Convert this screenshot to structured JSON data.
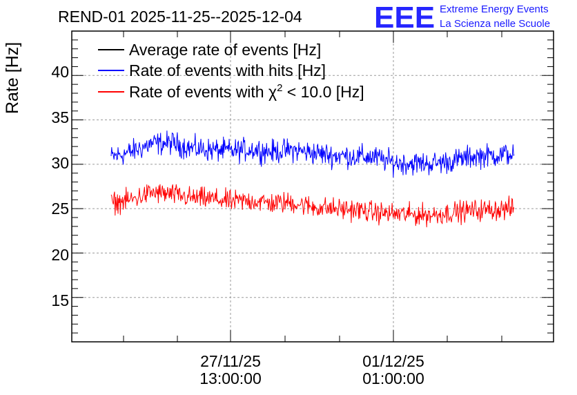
{
  "chart_data": {
    "type": "line",
    "title": "REND-01 2025-11-25--2025-12-04",
    "ylabel": "Rate [Hz]",
    "xlabel": "",
    "ylim": [
      10,
      45
    ],
    "yticks": [
      15,
      20,
      25,
      30,
      35,
      40
    ],
    "y_tick_labels": [
      "15",
      "20",
      "25",
      "30",
      "35",
      "40"
    ],
    "x_tick_labels": [
      {
        "date": "27/11/25",
        "time": "13:00:00"
      },
      {
        "date": "01/12/25",
        "time": "01:00:00"
      }
    ],
    "grid": true,
    "legend_position": "top-left",
    "series": [
      {
        "name": "Average rate of events [Hz]",
        "color": "#000000",
        "x": [],
        "values": []
      },
      {
        "name": "Rate of events with hits [Hz]",
        "color": "#0000ff",
        "x": [
          0.0,
          0.05,
          0.1,
          0.15,
          0.2,
          0.25,
          0.3,
          0.35,
          0.4,
          0.45,
          0.5,
          0.55,
          0.6,
          0.65,
          0.7,
          0.75,
          0.8,
          0.85,
          0.9,
          0.95,
          1.0
        ],
        "values": [
          30.8,
          31.4,
          32.3,
          32.4,
          31.8,
          31.6,
          31.5,
          31.7,
          31.4,
          31.6,
          31.3,
          31.0,
          30.9,
          30.8,
          30.2,
          30.1,
          30.1,
          30.4,
          30.9,
          31.0,
          31.2
        ],
        "noise": 1.3
      },
      {
        "name": "Rate of events with χ² < 10.0 [Hz]",
        "color": "#ff0000",
        "x": [
          0.0,
          0.05,
          0.1,
          0.15,
          0.2,
          0.25,
          0.3,
          0.35,
          0.4,
          0.45,
          0.5,
          0.55,
          0.6,
          0.65,
          0.7,
          0.75,
          0.8,
          0.85,
          0.9,
          0.95,
          1.0
        ],
        "values": [
          25.6,
          26.0,
          26.8,
          26.6,
          26.2,
          26.1,
          25.8,
          25.9,
          25.6,
          25.7,
          25.2,
          25.0,
          24.9,
          24.6,
          24.4,
          24.3,
          24.3,
          24.6,
          24.8,
          24.9,
          25.0
        ],
        "noise": 1.2
      }
    ],
    "legend": {
      "entries": [
        {
          "label": "Average rate of events [Hz]",
          "color": "#000000"
        },
        {
          "label_prefix": "Rate of events with hits [Hz]",
          "color": "#0000ff"
        },
        {
          "label_prefix": "Rate of events with χ",
          "superscript": "2",
          "label_suffix": " < 10.0 [Hz]",
          "color": "#ff0000"
        }
      ]
    }
  },
  "logo": {
    "mark": "EEE",
    "line1": "Extreme Energy Events",
    "line2": "La Scienza nelle Scuole"
  }
}
